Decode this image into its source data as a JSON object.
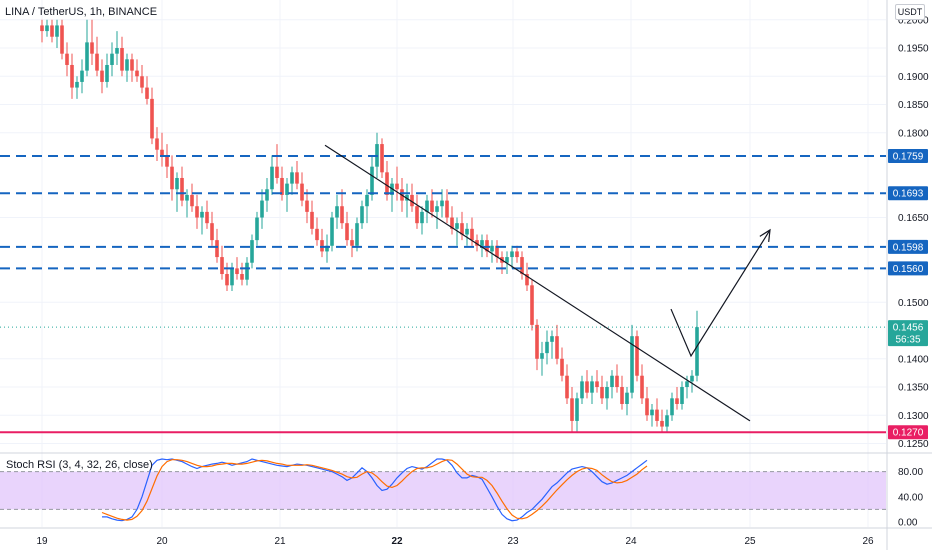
{
  "header": {
    "title": "LINA / TetherUS, 1h, BINANCE",
    "currency": "USDT"
  },
  "indicator": {
    "label": "Stoch RSI (3, 4, 32, 26, close)"
  },
  "colors": {
    "up": "#26a69a",
    "down": "#ef5350",
    "level": "#1565c0",
    "support": "#e91e63",
    "rsi_k": "#2962ff",
    "rsi_d": "#ff6d00",
    "rsi_band": "#e1c6fb"
  },
  "chart_data": [
    {
      "type": "candlestick",
      "ylim": [
        0.1235,
        0.2035
      ],
      "y_ticks": [
        "0.2000",
        "0.1950",
        "0.1900",
        "0.1850",
        "0.1800",
        "0.1650",
        "0.1500",
        "0.1400",
        "0.1350",
        "0.1300",
        "0.1250"
      ],
      "x_ticks": [
        "19",
        "20",
        "21",
        "22",
        "23",
        "24",
        "25",
        "26"
      ],
      "x_bold_tick": "22",
      "ohlc_hourly_start": "19 00:00",
      "ohlc": [
        [
          0.199,
          0.2,
          0.196,
          0.198
        ],
        [
          0.198,
          0.2,
          0.197,
          0.199
        ],
        [
          0.199,
          0.2,
          0.196,
          0.197
        ],
        [
          0.197,
          0.2,
          0.195,
          0.199
        ],
        [
          0.199,
          0.2,
          0.193,
          0.194
        ],
        [
          0.194,
          0.196,
          0.19,
          0.192
        ],
        [
          0.192,
          0.194,
          0.186,
          0.188
        ],
        [
          0.188,
          0.19,
          0.186,
          0.189
        ],
        [
          0.189,
          0.193,
          0.187,
          0.191
        ],
        [
          0.191,
          0.2,
          0.19,
          0.196
        ],
        [
          0.196,
          0.2,
          0.192,
          0.194
        ],
        [
          0.194,
          0.197,
          0.19,
          0.191
        ],
        [
          0.191,
          0.193,
          0.187,
          0.189
        ],
        [
          0.189,
          0.194,
          0.188,
          0.192
        ],
        [
          0.192,
          0.196,
          0.19,
          0.194
        ],
        [
          0.194,
          0.198,
          0.192,
          0.195
        ],
        [
          0.195,
          0.197,
          0.19,
          0.191
        ],
        [
          0.191,
          0.194,
          0.189,
          0.193
        ],
        [
          0.193,
          0.194,
          0.189,
          0.191
        ],
        [
          0.191,
          0.193,
          0.189,
          0.19
        ],
        [
          0.19,
          0.192,
          0.187,
          0.188
        ],
        [
          0.188,
          0.19,
          0.185,
          0.186
        ],
        [
          0.186,
          0.188,
          0.178,
          0.179
        ],
        [
          0.179,
          0.181,
          0.175,
          0.177
        ],
        [
          0.177,
          0.18,
          0.174,
          0.176
        ],
        [
          0.176,
          0.178,
          0.172,
          0.174
        ],
        [
          0.174,
          0.176,
          0.168,
          0.17
        ],
        [
          0.17,
          0.173,
          0.166,
          0.172
        ],
        [
          0.172,
          0.174,
          0.167,
          0.168
        ],
        [
          0.168,
          0.17,
          0.165,
          0.169
        ],
        [
          0.169,
          0.171,
          0.166,
          0.167
        ],
        [
          0.167,
          0.169,
          0.163,
          0.165
        ],
        [
          0.165,
          0.167,
          0.162,
          0.166
        ],
        [
          0.166,
          0.168,
          0.163,
          0.164
        ],
        [
          0.164,
          0.166,
          0.16,
          0.161
        ],
        [
          0.161,
          0.163,
          0.157,
          0.158
        ],
        [
          0.158,
          0.16,
          0.154,
          0.155
        ],
        [
          0.155,
          0.157,
          0.152,
          0.153
        ],
        [
          0.153,
          0.157,
          0.152,
          0.156
        ],
        [
          0.156,
          0.158,
          0.154,
          0.155
        ],
        [
          0.155,
          0.157,
          0.153,
          0.154
        ],
        [
          0.154,
          0.158,
          0.153,
          0.157
        ],
        [
          0.157,
          0.162,
          0.156,
          0.161
        ],
        [
          0.161,
          0.166,
          0.16,
          0.165
        ],
        [
          0.165,
          0.17,
          0.163,
          0.168
        ],
        [
          0.168,
          0.172,
          0.166,
          0.17
        ],
        [
          0.17,
          0.176,
          0.169,
          0.174
        ],
        [
          0.174,
          0.178,
          0.171,
          0.172
        ],
        [
          0.172,
          0.174,
          0.168,
          0.169
        ],
        [
          0.169,
          0.172,
          0.166,
          0.171
        ],
        [
          0.171,
          0.174,
          0.169,
          0.173
        ],
        [
          0.173,
          0.175,
          0.17,
          0.171
        ],
        [
          0.171,
          0.173,
          0.167,
          0.168
        ],
        [
          0.168,
          0.17,
          0.164,
          0.166
        ],
        [
          0.166,
          0.168,
          0.162,
          0.163
        ],
        [
          0.163,
          0.165,
          0.16,
          0.161
        ],
        [
          0.161,
          0.163,
          0.158,
          0.159
        ],
        [
          0.159,
          0.162,
          0.157,
          0.16
        ],
        [
          0.16,
          0.166,
          0.159,
          0.165
        ],
        [
          0.165,
          0.169,
          0.163,
          0.167
        ],
        [
          0.167,
          0.17,
          0.163,
          0.164
        ],
        [
          0.164,
          0.166,
          0.16,
          0.161
        ],
        [
          0.161,
          0.163,
          0.158,
          0.16
        ],
        [
          0.16,
          0.165,
          0.159,
          0.164
        ],
        [
          0.164,
          0.168,
          0.163,
          0.167
        ],
        [
          0.167,
          0.17,
          0.164,
          0.169
        ],
        [
          0.169,
          0.176,
          0.168,
          0.174
        ],
        [
          0.174,
          0.18,
          0.172,
          0.178
        ],
        [
          0.178,
          0.179,
          0.172,
          0.173
        ],
        [
          0.173,
          0.175,
          0.168,
          0.169
        ],
        [
          0.169,
          0.172,
          0.166,
          0.171
        ],
        [
          0.171,
          0.174,
          0.168,
          0.17
        ],
        [
          0.17,
          0.172,
          0.166,
          0.168
        ],
        [
          0.168,
          0.171,
          0.165,
          0.169
        ],
        [
          0.169,
          0.171,
          0.166,
          0.167
        ],
        [
          0.167,
          0.169,
          0.163,
          0.164
        ],
        [
          0.164,
          0.167,
          0.162,
          0.166
        ],
        [
          0.166,
          0.169,
          0.164,
          0.168
        ],
        [
          0.168,
          0.17,
          0.165,
          0.166
        ],
        [
          0.166,
          0.168,
          0.163,
          0.167
        ],
        [
          0.167,
          0.17,
          0.165,
          0.168
        ],
        [
          0.168,
          0.17,
          0.164,
          0.165
        ],
        [
          0.165,
          0.167,
          0.162,
          0.163
        ],
        [
          0.163,
          0.165,
          0.16,
          0.164
        ],
        [
          0.164,
          0.166,
          0.161,
          0.162
        ],
        [
          0.162,
          0.164,
          0.16,
          0.163
        ],
        [
          0.163,
          0.165,
          0.16,
          0.161
        ],
        [
          0.161,
          0.162,
          0.159,
          0.16
        ],
        [
          0.16,
          0.162,
          0.158,
          0.161
        ],
        [
          0.161,
          0.162,
          0.158,
          0.159
        ],
        [
          0.159,
          0.161,
          0.157,
          0.16
        ],
        [
          0.16,
          0.161,
          0.157,
          0.158
        ],
        [
          0.158,
          0.159,
          0.155,
          0.157
        ],
        [
          0.157,
          0.159,
          0.155,
          0.158
        ],
        [
          0.158,
          0.16,
          0.156,
          0.159
        ],
        [
          0.159,
          0.16,
          0.157,
          0.158
        ],
        [
          0.158,
          0.159,
          0.154,
          0.155
        ],
        [
          0.155,
          0.157,
          0.152,
          0.153
        ],
        [
          0.153,
          0.154,
          0.145,
          0.146
        ],
        [
          0.146,
          0.147,
          0.138,
          0.14
        ],
        [
          0.14,
          0.143,
          0.137,
          0.141
        ],
        [
          0.141,
          0.145,
          0.139,
          0.143
        ],
        [
          0.143,
          0.145,
          0.14,
          0.144
        ],
        [
          0.144,
          0.146,
          0.139,
          0.14
        ],
        [
          0.14,
          0.142,
          0.136,
          0.137
        ],
        [
          0.137,
          0.139,
          0.132,
          0.133
        ],
        [
          0.133,
          0.135,
          0.127,
          0.129
        ],
        [
          0.129,
          0.134,
          0.127,
          0.133
        ],
        [
          0.133,
          0.137,
          0.132,
          0.136
        ],
        [
          0.136,
          0.138,
          0.133,
          0.134
        ],
        [
          0.134,
          0.137,
          0.132,
          0.136
        ],
        [
          0.136,
          0.138,
          0.134,
          0.135
        ],
        [
          0.135,
          0.137,
          0.132,
          0.133
        ],
        [
          0.133,
          0.136,
          0.131,
          0.135
        ],
        [
          0.135,
          0.138,
          0.133,
          0.137
        ],
        [
          0.137,
          0.139,
          0.134,
          0.135
        ],
        [
          0.135,
          0.137,
          0.131,
          0.132
        ],
        [
          0.132,
          0.135,
          0.13,
          0.134
        ],
        [
          0.134,
          0.146,
          0.133,
          0.144
        ],
        [
          0.144,
          0.145,
          0.136,
          0.137
        ],
        [
          0.137,
          0.139,
          0.132,
          0.133
        ],
        [
          0.133,
          0.135,
          0.129,
          0.13
        ],
        [
          0.13,
          0.132,
          0.128,
          0.131
        ],
        [
          0.131,
          0.133,
          0.128,
          0.129
        ],
        [
          0.129,
          0.131,
          0.127,
          0.128
        ],
        [
          0.128,
          0.131,
          0.127,
          0.13
        ],
        [
          0.13,
          0.134,
          0.129,
          0.133
        ],
        [
          0.133,
          0.135,
          0.131,
          0.132
        ],
        [
          0.132,
          0.136,
          0.131,
          0.135
        ],
        [
          0.135,
          0.137,
          0.133,
          0.136
        ],
        [
          0.136,
          0.138,
          0.134,
          0.137
        ],
        [
          0.137,
          0.1485,
          0.136,
          0.1456
        ]
      ],
      "price_levels": [
        {
          "value": 0.1759,
          "label": "0.1759",
          "style": "dashed"
        },
        {
          "value": 0.1693,
          "label": "0.1693",
          "style": "dashed"
        },
        {
          "value": 0.1598,
          "label": "0.1598",
          "style": "dashed"
        },
        {
          "value": 0.156,
          "label": "0.1560",
          "style": "dashed"
        },
        {
          "value": 0.127,
          "label": "0.1270",
          "style": "solid"
        }
      ],
      "last_price": {
        "value": 0.1456,
        "label": "0.1456",
        "countdown": "56:35"
      },
      "trendline": {
        "from": [
          "21 09:00",
          0.1778
        ],
        "to": [
          "25 00:00",
          0.129
        ]
      },
      "projection_arrow": [
        [
          "24 08:00",
          0.1488
        ],
        [
          "24 12:00",
          0.1405
        ],
        [
          "25 04:00",
          0.1628
        ]
      ]
    },
    {
      "type": "line",
      "title": "Stoch RSI (3, 4, 32, 26, close)",
      "ylim": [
        -8,
        108
      ],
      "y_ticks": [
        "80.00",
        "40.00",
        "0.00"
      ],
      "band": [
        20,
        80
      ],
      "x_hourly_start": "19 12:00",
      "series": [
        {
          "name": "K",
          "color": "#2962ff",
          "values": [
            8,
            8,
            5,
            3,
            2,
            4,
            8,
            20,
            40,
            65,
            90,
            98,
            100,
            99,
            100,
            98,
            96,
            92,
            88,
            85,
            88,
            90,
            92,
            93,
            95,
            93,
            90,
            92,
            94,
            96,
            100,
            98,
            96,
            94,
            92,
            90,
            89,
            88,
            90,
            92,
            91,
            90,
            88,
            86,
            84,
            82,
            80,
            76,
            72,
            66,
            70,
            78,
            86,
            80,
            70,
            58,
            50,
            52,
            60,
            70,
            78,
            85,
            88,
            86,
            84,
            88,
            94,
            100,
            100,
            98,
            90,
            78,
            70,
            70,
            74,
            72,
            68,
            54,
            40,
            25,
            12,
            5,
            2,
            3,
            8,
            15,
            20,
            28,
            36,
            46,
            56,
            62,
            70,
            78,
            84,
            86,
            88,
            86,
            80,
            72,
            64,
            60,
            62,
            66,
            70,
            74,
            80,
            86,
            92,
            98
          ]
        },
        {
          "name": "D",
          "color": "#ff6d00",
          "values": [
            15,
            12,
            9,
            6,
            4,
            3,
            4,
            9,
            18,
            33,
            53,
            73,
            88,
            96,
            99,
            99,
            98,
            96,
            93,
            90,
            88,
            88,
            89,
            91,
            92,
            93,
            93,
            92,
            92,
            93,
            95,
            97,
            98,
            97,
            95,
            93,
            92,
            90,
            90,
            90,
            90,
            91,
            90,
            88,
            86,
            84,
            82,
            79,
            76,
            72,
            70,
            71,
            76,
            80,
            78,
            72,
            64,
            57,
            55,
            58,
            65,
            73,
            80,
            85,
            86,
            86,
            88,
            92,
            96,
            99,
            98,
            92,
            84,
            76,
            72,
            71,
            71,
            66,
            58,
            46,
            33,
            21,
            11,
            6,
            5,
            7,
            12,
            18,
            25,
            33,
            42,
            51,
            59,
            67,
            74,
            80,
            84,
            86,
            85,
            82,
            75,
            69,
            64,
            62,
            63,
            66,
            71,
            76,
            83,
            89
          ]
        }
      ]
    }
  ]
}
